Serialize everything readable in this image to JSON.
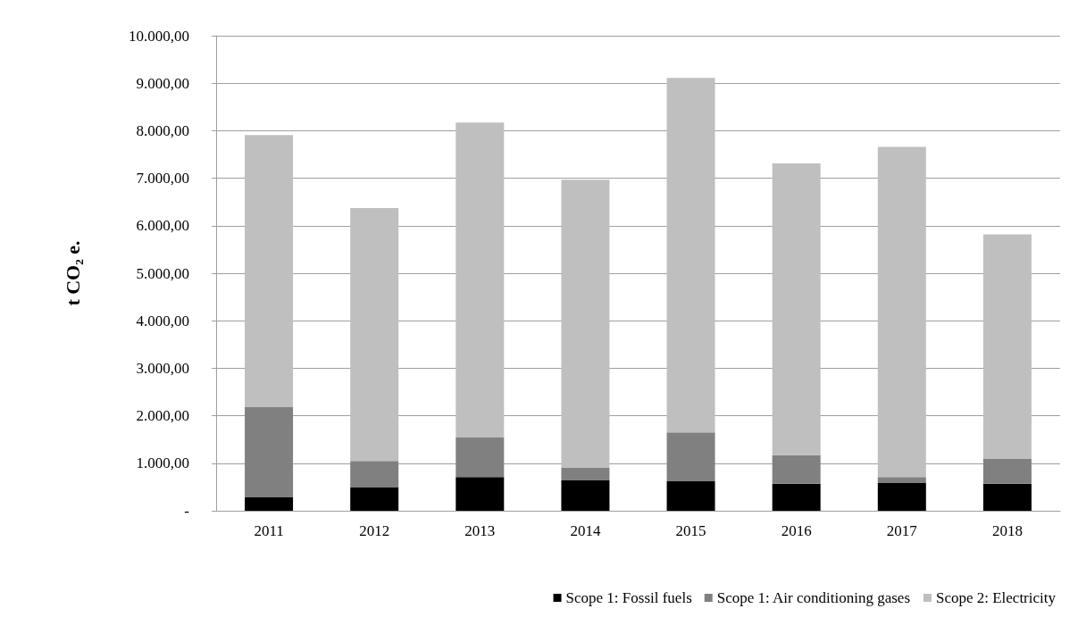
{
  "chart_data": {
    "type": "bar",
    "stacked": true,
    "ylabel": "t CO₂ e.",
    "categories": [
      "2011",
      "2012",
      "2013",
      "2014",
      "2015",
      "2016",
      "2017",
      "2018"
    ],
    "series": [
      {
        "name": "Scope 1: Fossil fuels",
        "color": "#000000",
        "values": [
          280,
          500,
          710,
          640,
          620,
          570,
          590,
          570
        ]
      },
      {
        "name": "Scope 1: Air conditioning gases",
        "color": "#808080",
        "values": [
          1910,
          550,
          830,
          270,
          1030,
          600,
          120,
          530
        ]
      },
      {
        "name": "Scope 2: Electricity",
        "color": "#bfbfbf",
        "values": [
          5720,
          5320,
          6630,
          6060,
          7460,
          6140,
          6950,
          4720
        ]
      }
    ],
    "ylim": [
      0,
      10000
    ],
    "yticks": [
      {
        "value": 0,
        "label": "-"
      },
      {
        "value": 1000,
        "label": "1.000,00"
      },
      {
        "value": 2000,
        "label": "2.000,00"
      },
      {
        "value": 3000,
        "label": "3.000,00"
      },
      {
        "value": 4000,
        "label": "4.000,00"
      },
      {
        "value": 5000,
        "label": "5.000,00"
      },
      {
        "value": 6000,
        "label": "6.000,00"
      },
      {
        "value": 7000,
        "label": "7.000,00"
      },
      {
        "value": 8000,
        "label": "8.000,00"
      },
      {
        "value": 9000,
        "label": "9.000,00"
      },
      {
        "value": 10000,
        "label": "10.000,00"
      }
    ],
    "grid": "y",
    "legend": "bottom right"
  }
}
